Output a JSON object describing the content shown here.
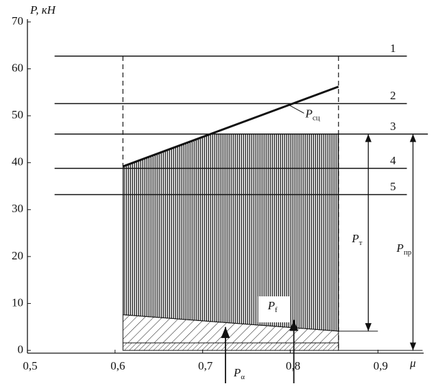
{
  "chart_data": {
    "type": "line",
    "y_label": "P, кН",
    "x_label": "μ",
    "xlim": [
      0.5,
      0.96
    ],
    "ylim": [
      0,
      70
    ],
    "xticks": [
      {
        "value": 0.5,
        "label": "0,5"
      },
      {
        "value": 0.6,
        "label": "0,6"
      },
      {
        "value": 0.7,
        "label": "0,7"
      },
      {
        "value": 0.8,
        "label": "0,8"
      },
      {
        "value": 0.9,
        "label": "0,9"
      }
    ],
    "yticks": [
      0,
      10,
      20,
      30,
      40,
      50,
      60,
      70
    ],
    "color": "#111111",
    "series": [
      {
        "name": "1",
        "x": [
          0.531,
          0.933
        ],
        "values": [
          62.7,
          62.7
        ]
      },
      {
        "name": "2",
        "x": [
          0.531,
          0.933
        ],
        "values": [
          52.6,
          52.6
        ]
      },
      {
        "name": "3",
        "x": [
          0.531,
          0.957
        ],
        "values": [
          46.1,
          46.1
        ]
      },
      {
        "name": "4",
        "x": [
          0.531,
          0.933
        ],
        "values": [
          38.8,
          38.8
        ]
      },
      {
        "name": "5",
        "x": [
          0.531,
          0.933
        ],
        "values": [
          33.2,
          33.2
        ]
      }
    ],
    "adhesion": {
      "text": "P",
      "sub": "сц",
      "x": [
        0.609,
        0.855
      ],
      "values": [
        39.2,
        56.2
      ]
    },
    "traction_region": {
      "x": [
        0.609,
        0.709,
        0.855,
        0.855,
        0.609
      ],
      "values": [
        39.2,
        46.1,
        46.1,
        4.1,
        7.6
      ]
    },
    "rolling_region": {
      "x": [
        0.609,
        0.855,
        0.855,
        0.609
      ],
      "values": [
        7.6,
        4.1,
        1.6,
        1.6
      ]
    },
    "base_region": {
      "x": [
        0.609,
        0.855,
        0.855,
        0.609
      ],
      "values": [
        1.6,
        1.6,
        0,
        0
      ]
    },
    "spans": [
      {
        "text": "P",
        "sub": "т",
        "x": 0.889,
        "values": [
          46.1,
          4.1
        ]
      },
      {
        "text": "P",
        "sub": "пр",
        "x": 0.94,
        "values": [
          46.1,
          0
        ]
      }
    ],
    "forces": [
      {
        "text": "P",
        "sub": "α",
        "x": 0.726,
        "tip": 5
      },
      {
        "text": "P",
        "sub": "f",
        "x": 0.804,
        "tip": 6.5
      }
    ]
  }
}
